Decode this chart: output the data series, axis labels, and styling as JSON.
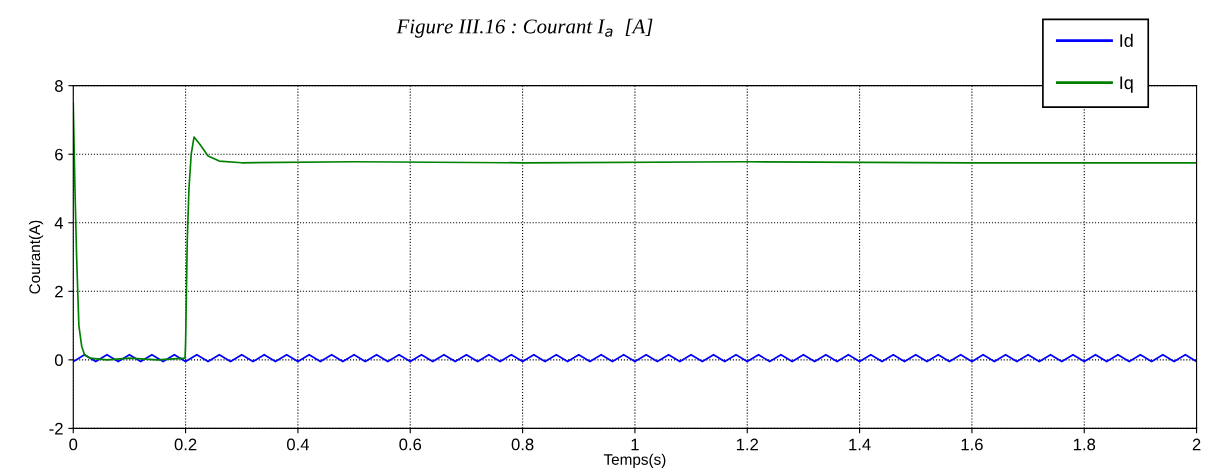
{
  "chart_data": {
    "type": "line",
    "title": "Figure III.16 : Courant I$_{a}$  [A]",
    "xlabel": "Temps(s)",
    "ylabel": "Courant(A)",
    "xlim": [
      0,
      2
    ],
    "ylim": [
      -2,
      8
    ],
    "xticks": [
      0,
      0.2,
      0.4,
      0.6,
      0.8,
      1,
      1.2,
      1.4,
      1.6,
      1.8,
      2
    ],
    "yticks": [
      -2,
      0,
      2,
      4,
      6,
      8
    ],
    "grid": true,
    "legend": "top right",
    "series": [
      {
        "name": "Id",
        "color": "#0000ff",
        "x": [
          0,
          0.02,
          0.04,
          0.06,
          0.08,
          0.1,
          0.12,
          0.14,
          0.16,
          0.18,
          0.2,
          0.22,
          0.24,
          0.26,
          0.28,
          0.3,
          0.32,
          0.34,
          0.36,
          0.38,
          0.4,
          0.42,
          0.44,
          0.46,
          0.48,
          0.5,
          0.52,
          0.54,
          0.56,
          0.58,
          0.6,
          0.62,
          0.64,
          0.66,
          0.68,
          0.7,
          0.72,
          0.74,
          0.76,
          0.78,
          0.8,
          0.82,
          0.84,
          0.86,
          0.88,
          0.9,
          0.92,
          0.94,
          0.96,
          0.98,
          1,
          1.02,
          1.04,
          1.06,
          1.08,
          1.1,
          1.12,
          1.14,
          1.16,
          1.18,
          1.2,
          1.22,
          1.24,
          1.26,
          1.28,
          1.3,
          1.32,
          1.34,
          1.36,
          1.38,
          1.4,
          1.42,
          1.44,
          1.46,
          1.48,
          1.5,
          1.52,
          1.54,
          1.56,
          1.58,
          1.6,
          1.62,
          1.64,
          1.66,
          1.68,
          1.7,
          1.72,
          1.74,
          1.76,
          1.78,
          1.8,
          1.82,
          1.84,
          1.86,
          1.88,
          1.9,
          1.92,
          1.94,
          1.96,
          1.98,
          2
        ],
        "values": [
          -0.05,
          0.15,
          -0.05,
          0.15,
          -0.05,
          0.15,
          -0.05,
          0.15,
          -0.05,
          0.15,
          -0.05,
          0.15,
          -0.05,
          0.15,
          -0.05,
          0.15,
          -0.05,
          0.15,
          -0.05,
          0.15,
          -0.05,
          0.15,
          -0.05,
          0.15,
          -0.05,
          0.15,
          -0.05,
          0.15,
          -0.05,
          0.15,
          -0.05,
          0.15,
          -0.05,
          0.15,
          -0.05,
          0.15,
          -0.05,
          0.15,
          -0.05,
          0.15,
          -0.05,
          0.15,
          -0.05,
          0.15,
          -0.05,
          0.15,
          -0.05,
          0.15,
          -0.05,
          0.15,
          -0.05,
          0.15,
          -0.05,
          0.15,
          -0.05,
          0.15,
          -0.05,
          0.15,
          -0.05,
          0.15,
          -0.05,
          0.15,
          -0.05,
          0.15,
          -0.05,
          0.15,
          -0.05,
          0.15,
          -0.05,
          0.15,
          -0.05,
          0.15,
          -0.05,
          0.15,
          -0.05,
          0.15,
          -0.05,
          0.15,
          -0.05,
          0.15,
          -0.05,
          0.15,
          -0.05,
          0.15,
          -0.05,
          0.15,
          -0.05,
          0.15,
          -0.05,
          0.15,
          -0.05,
          0.15,
          -0.05,
          0.15,
          -0.05,
          0.15,
          -0.05,
          0.15,
          -0.05,
          0.15,
          -0.05
        ]
      },
      {
        "name": "Iq",
        "color": "#008000",
        "x": [
          0,
          0.003,
          0.006,
          0.01,
          0.015,
          0.02,
          0.03,
          0.06,
          0.1,
          0.15,
          0.199,
          0.2,
          0.203,
          0.206,
          0.21,
          0.215,
          0.225,
          0.24,
          0.26,
          0.3,
          0.5,
          0.8,
          1.2,
          1.6,
          2
        ],
        "values": [
          7.5,
          5,
          3,
          1,
          0.4,
          0.15,
          0.05,
          0,
          0.05,
          0,
          0.05,
          0.5,
          3.5,
          5,
          6,
          6.5,
          6.3,
          5.95,
          5.8,
          5.75,
          5.78,
          5.75,
          5.78,
          5.75,
          5.75
        ]
      }
    ]
  }
}
